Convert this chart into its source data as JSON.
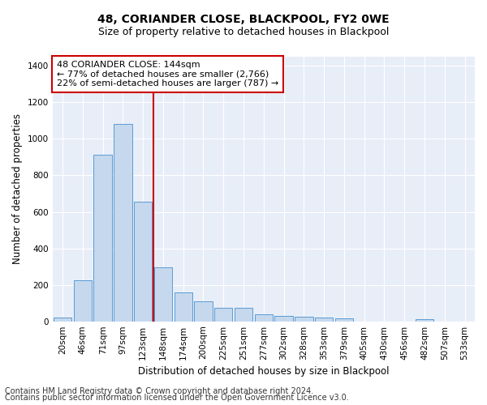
{
  "title": "48, CORIANDER CLOSE, BLACKPOOL, FY2 0WE",
  "subtitle": "Size of property relative to detached houses in Blackpool",
  "xlabel": "Distribution of detached houses by size in Blackpool",
  "ylabel": "Number of detached properties",
  "categories": [
    "20sqm",
    "46sqm",
    "71sqm",
    "97sqm",
    "123sqm",
    "148sqm",
    "174sqm",
    "200sqm",
    "225sqm",
    "251sqm",
    "277sqm",
    "302sqm",
    "328sqm",
    "353sqm",
    "379sqm",
    "405sqm",
    "430sqm",
    "456sqm",
    "482sqm",
    "507sqm",
    "533sqm"
  ],
  "values": [
    20,
    225,
    915,
    1080,
    655,
    295,
    160,
    108,
    72,
    72,
    40,
    30,
    25,
    22,
    15,
    0,
    0,
    0,
    13,
    0,
    0
  ],
  "bar_color": "#c5d8ed",
  "bar_edgecolor": "#5b9bd5",
  "vline_color": "#cc0000",
  "vline_x": 4.5,
  "annotation_line1": "48 CORIANDER CLOSE: 144sqm",
  "annotation_line2": "← 77% of detached houses are smaller (2,766)",
  "annotation_line3": "22% of semi-detached houses are larger (787) →",
  "annotation_box_edgecolor": "#cc0000",
  "annotation_box_facecolor": "#ffffff",
  "ylim": [
    0,
    1450
  ],
  "yticks": [
    0,
    200,
    400,
    600,
    800,
    1000,
    1200,
    1400
  ],
  "plot_bg_color": "#e8eef8",
  "footer_line1": "Contains HM Land Registry data © Crown copyright and database right 2024.",
  "footer_line2": "Contains public sector information licensed under the Open Government Licence v3.0.",
  "title_fontsize": 10,
  "subtitle_fontsize": 9,
  "xlabel_fontsize": 8.5,
  "ylabel_fontsize": 8.5,
  "tick_fontsize": 7.5,
  "annotation_fontsize": 8,
  "footer_fontsize": 7
}
